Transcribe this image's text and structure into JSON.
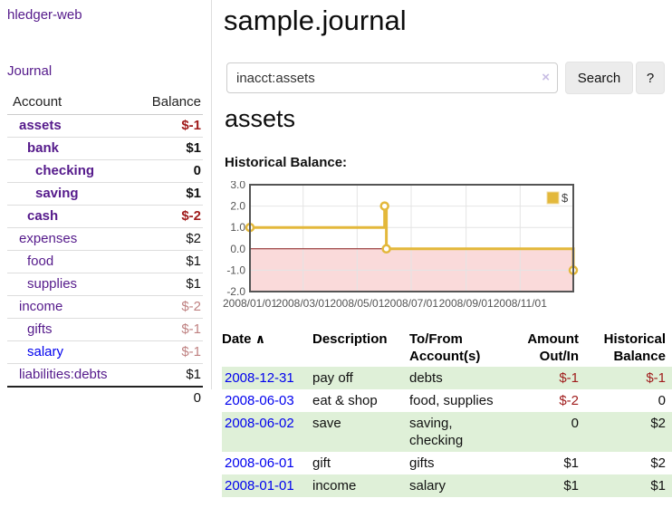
{
  "colors": {
    "accent_purple": "#551a8b",
    "link_blue": "#0000ee",
    "negative_red": "#a01c1c",
    "muted_negative_red": "#bf8181",
    "row_stripe_green": "#dff0d8",
    "chart_gold": "#e3b83b",
    "chart_negative_fill": "#fadada",
    "chart_zero_line": "#8b1a1a"
  },
  "sidebar": {
    "brand": "hledger-web",
    "journal_link": "Journal",
    "accounts_table": {
      "headers": {
        "account": "Account",
        "balance": "Balance"
      },
      "rows": [
        {
          "name": "assets",
          "depth": 1,
          "balance": "$-1",
          "bold": true,
          "balance_class": "neg"
        },
        {
          "name": "bank",
          "depth": 2,
          "balance": "$1",
          "bold": true,
          "balance_class": ""
        },
        {
          "name": "checking",
          "depth": 3,
          "balance": "0",
          "bold": true,
          "balance_class": ""
        },
        {
          "name": "saving",
          "depth": 3,
          "balance": "$1",
          "bold": true,
          "balance_class": ""
        },
        {
          "name": "cash",
          "depth": 2,
          "balance": "$-2",
          "bold": true,
          "balance_class": "neg"
        },
        {
          "name": "expenses",
          "depth": 1,
          "balance": "$2",
          "bold": false,
          "balance_class": ""
        },
        {
          "name": "food",
          "depth": 2,
          "balance": "$1",
          "bold": false,
          "balance_class": ""
        },
        {
          "name": "supplies",
          "depth": 2,
          "balance": "$1",
          "bold": false,
          "balance_class": ""
        },
        {
          "name": "income",
          "depth": 1,
          "balance": "$-2",
          "bold": false,
          "balance_class": "mneg"
        },
        {
          "name": "gifts",
          "depth": 2,
          "balance": "$-1",
          "bold": false,
          "balance_class": "mneg"
        },
        {
          "name": "salary",
          "depth": 2,
          "balance": "$-1",
          "bold": false,
          "balance_class": "mneg",
          "link_color": "blue"
        },
        {
          "name": "liabilities:debts",
          "depth": 1,
          "balance": "$1",
          "bold": false,
          "balance_class": ""
        }
      ],
      "total": "0"
    }
  },
  "header": {
    "title": "sample.journal"
  },
  "search": {
    "value": "inacct:assets",
    "clear_icon": "×",
    "button_label": "Search",
    "help_label": "?"
  },
  "account_page": {
    "heading": "assets",
    "chart_label": "Historical Balance:"
  },
  "chart_data": {
    "type": "line",
    "title": "Historical Balance",
    "legend_label": "$",
    "step": true,
    "series": [
      {
        "name": "$",
        "points": [
          [
            "2008-01-01",
            1
          ],
          [
            "2008-06-01",
            2
          ],
          [
            "2008-06-03",
            0
          ],
          [
            "2008-12-31",
            -1
          ]
        ]
      }
    ],
    "xrange": [
      "2008-01-01",
      "2008-12-31"
    ],
    "ylim": [
      -2,
      3
    ],
    "yticks": [
      3.0,
      2.0,
      1.0,
      0.0,
      -1.0,
      -2.0
    ],
    "xticks": [
      "2008/01/01",
      "2008/03/01",
      "2008/05/01",
      "2008/07/01",
      "2008/09/01",
      "2008/11/01"
    ],
    "grid": true,
    "legend_position": "top-right",
    "series_color": "#e3b83b",
    "negative_region_fill": "#fadada",
    "zero_line_color": "#8b1a1a"
  },
  "transactions": {
    "columns": [
      {
        "label": "Date",
        "line2": "",
        "icon": "∧"
      },
      {
        "label": "Description",
        "line2": ""
      },
      {
        "label": "To/From",
        "line2": "Account(s)"
      },
      {
        "label": "Amount",
        "line2": "Out/In"
      },
      {
        "label": "Historical",
        "line2": "Balance"
      }
    ],
    "rows": [
      {
        "date": "2008-12-31",
        "description": "pay off",
        "accounts": "debts",
        "amount": "$-1",
        "amount_neg": true,
        "balance": "$-1",
        "balance_neg": true
      },
      {
        "date": "2008-06-03",
        "description": "eat & shop",
        "accounts": "food, supplies",
        "amount": "$-2",
        "amount_neg": true,
        "balance": "0",
        "balance_neg": false
      },
      {
        "date": "2008-06-02",
        "description": "save",
        "accounts": "saving, checking",
        "amount": "0",
        "amount_neg": false,
        "balance": "$2",
        "balance_neg": false
      },
      {
        "date": "2008-06-01",
        "description": "gift",
        "accounts": "gifts",
        "amount": "$1",
        "amount_neg": false,
        "balance": "$2",
        "balance_neg": false
      },
      {
        "date": "2008-01-01",
        "description": "income",
        "accounts": "salary",
        "amount": "$1",
        "amount_neg": false,
        "balance": "$1",
        "balance_neg": false
      }
    ]
  }
}
